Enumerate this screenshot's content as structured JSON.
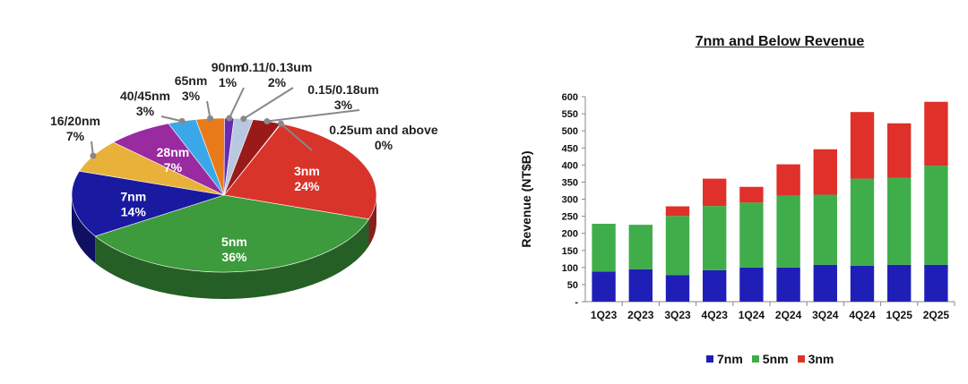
{
  "chart_data": [
    {
      "type": "pie",
      "slices": [
        {
          "label": "3nm",
          "value": 24,
          "pct": "24%",
          "color": "#d8342a"
        },
        {
          "label": "5nm",
          "value": 36,
          "pct": "36%",
          "color": "#3d9a3d"
        },
        {
          "label": "7nm",
          "value": 14,
          "pct": "14%",
          "color": "#1a1aa0"
        },
        {
          "label": "16/20nm",
          "value": 7,
          "pct": "7%",
          "color": "#e8b23a"
        },
        {
          "label": "28nm",
          "value": 7,
          "pct": "7%",
          "color": "#9a2aa0"
        },
        {
          "label": "40/45nm",
          "value": 3,
          "pct": "3%",
          "color": "#3aa8e8"
        },
        {
          "label": "65nm",
          "value": 3,
          "pct": "3%",
          "color": "#e87a1a"
        },
        {
          "label": "90nm",
          "value": 1,
          "pct": "1%",
          "color": "#6a2ab0"
        },
        {
          "label": "0.11/0.13um",
          "value": 2,
          "pct": "2%",
          "color": "#b8c8e0"
        },
        {
          "label": "0.15/0.18um",
          "value": 3,
          "pct": "3%",
          "color": "#9a1a1a"
        },
        {
          "label": "0.25um and above",
          "value": 0,
          "pct": "0%",
          "color": "#7a1010"
        }
      ]
    },
    {
      "type": "bar",
      "stacked": true,
      "title": "7nm and Below Revenue",
      "xlabel": "",
      "ylabel": "Revenue (NT$B)",
      "ylim": [
        0,
        600
      ],
      "yticks": [
        "-",
        "50",
        "100",
        "150",
        "200",
        "250",
        "300",
        "350",
        "400",
        "450",
        "500",
        "550",
        "600"
      ],
      "categories": [
        "1Q23",
        "2Q23",
        "3Q23",
        "4Q23",
        "1Q24",
        "2Q24",
        "3Q24",
        "4Q24",
        "1Q25",
        "2Q25"
      ],
      "series": [
        {
          "name": "7nm",
          "color": "#1f1fb8",
          "values": [
            88,
            95,
            78,
            92,
            100,
            100,
            108,
            105,
            108,
            108
          ]
        },
        {
          "name": "5nm",
          "color": "#3fae4a",
          "values": [
            140,
            130,
            173,
            188,
            190,
            210,
            205,
            255,
            254,
            290
          ]
        },
        {
          "name": "3nm",
          "color": "#e0302a",
          "values": [
            0,
            0,
            28,
            80,
            46,
            92,
            133,
            195,
            160,
            187
          ]
        }
      ],
      "legend": "bottom"
    }
  ]
}
